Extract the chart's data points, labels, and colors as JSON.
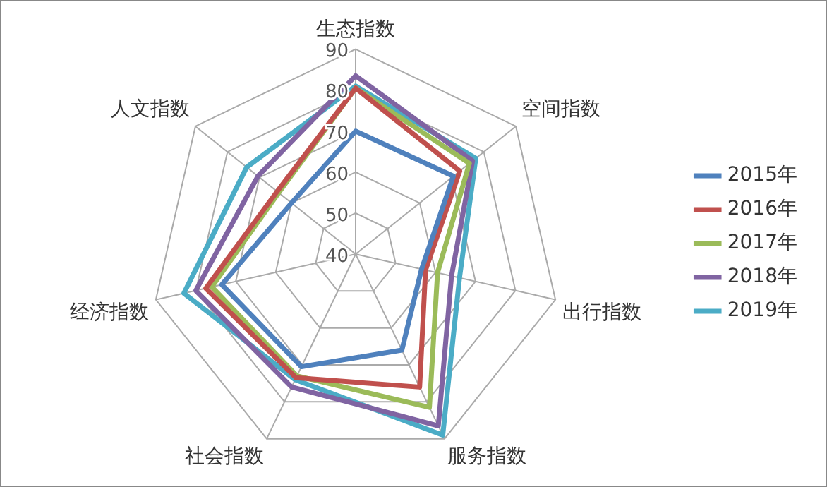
{
  "chart_data": {
    "type": "radar",
    "categories": [
      "生态指数",
      "空间指数",
      "出行指数",
      "服务指数",
      "社会指数",
      "经济指数",
      "人文指数"
    ],
    "series": [
      {
        "name": "2015年",
        "color": "#4f81bd",
        "values": [
          70,
          70.5,
          56.5,
          66,
          70.5,
          73.5,
          60
        ]
      },
      {
        "name": "2016年",
        "color": "#c0504d",
        "values": [
          80.5,
          72.5,
          57.5,
          76,
          73.5,
          77.5,
          64.5
        ]
      },
      {
        "name": "2017年",
        "color": "#9bbb59",
        "values": [
          80.5,
          75.5,
          60.5,
          81.5,
          73,
          76,
          64
        ]
      },
      {
        "name": "2018年",
        "color": "#8064a2",
        "values": [
          83.5,
          76.5,
          64,
          86.5,
          76,
          80,
          70.5
        ]
      },
      {
        "name": "2019年",
        "color": "#4bacc6",
        "values": [
          81,
          77.5,
          66,
          89,
          74,
          83,
          74
        ]
      }
    ],
    "ylim": [
      40,
      90
    ],
    "yticks": [
      40,
      50,
      60,
      70,
      80,
      90
    ],
    "grid": true,
    "legend": "right",
    "marker": "none",
    "line_style": "solid"
  }
}
